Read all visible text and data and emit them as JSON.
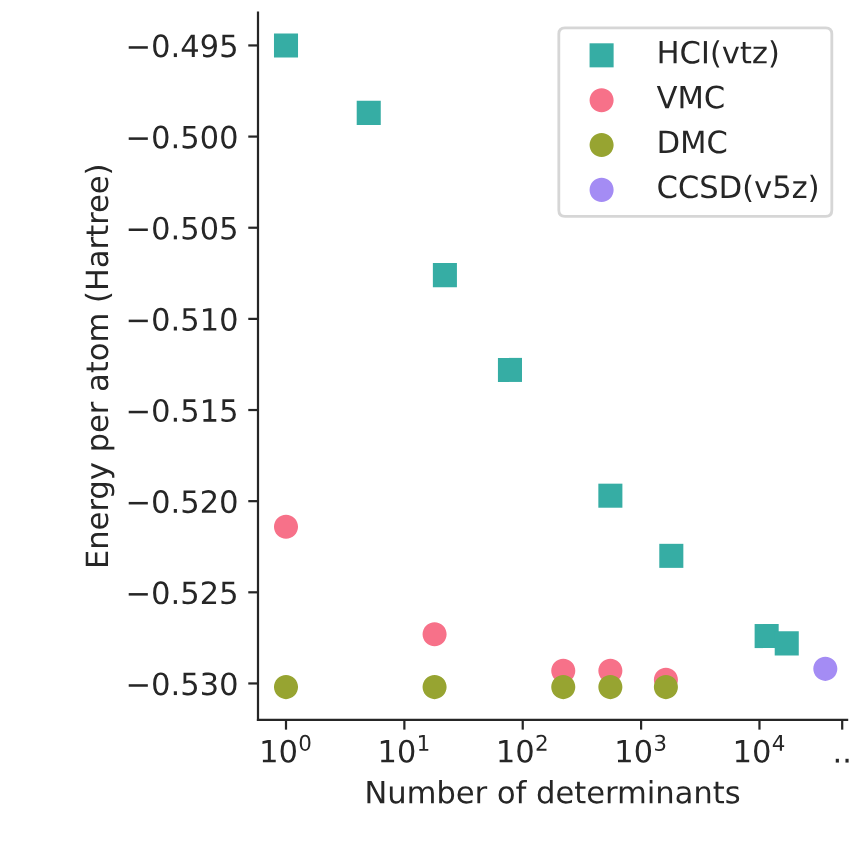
{
  "chart_data": {
    "type": "scatter",
    "xlabel": "Number of determinants",
    "ylabel": "Energy per atom (Hartree)",
    "log": "x",
    "xlim": [
      0.58,
      55000
    ],
    "xticks": [
      {
        "value": 1,
        "label": "10$^{0}$"
      },
      {
        "value": 10,
        "label": "10$^{1}$"
      },
      {
        "value": 100,
        "label": "10$^{2}$"
      },
      {
        "value": 1000,
        "label": "10$^{3}$"
      },
      {
        "value": 10000,
        "label": "10$^{4}$"
      },
      {
        "value": 50000,
        "label": ".."
      }
    ],
    "ylim": [
      -0.532,
      -0.4932
    ],
    "yticks": [
      {
        "value": -0.495,
        "label": "−0.495"
      },
      {
        "value": -0.5,
        "label": "−0.500"
      },
      {
        "value": -0.505,
        "label": "−0.505"
      },
      {
        "value": -0.51,
        "label": "−0.510"
      },
      {
        "value": -0.515,
        "label": "−0.515"
      },
      {
        "value": -0.52,
        "label": "−0.520"
      },
      {
        "value": -0.525,
        "label": "−0.525"
      },
      {
        "value": -0.53,
        "label": "−0.530"
      }
    ],
    "legend": "top right",
    "grid": false,
    "series": [
      {
        "name": "HCI(vtz)",
        "color": "#36ada4",
        "marker": "square",
        "x": [
          1,
          5,
          22,
          78,
          550,
          1800,
          11500,
          17000
        ],
        "values": [
          -0.495,
          -0.4987,
          -0.5076,
          -0.5128,
          -0.5197,
          -0.523,
          -0.5274,
          -0.5278
        ]
      },
      {
        "name": "VMC",
        "color": "#f77189",
        "marker": "circle",
        "x": [
          1,
          18,
          220,
          550,
          1620
        ],
        "values": [
          -0.5214,
          -0.5273,
          -0.5293,
          -0.5293,
          -0.5298
        ]
      },
      {
        "name": "DMC",
        "color": "#97a431",
        "marker": "circle",
        "x": [
          1,
          18,
          220,
          550,
          1620
        ],
        "values": [
          -0.5302,
          -0.5302,
          -0.5302,
          -0.5302,
          -0.5302
        ]
      },
      {
        "name": "CCSD(v5z)",
        "color": "#a48cf4",
        "marker": "circle",
        "x": [
          36000
        ],
        "values": [
          -0.5292
        ]
      }
    ]
  }
}
